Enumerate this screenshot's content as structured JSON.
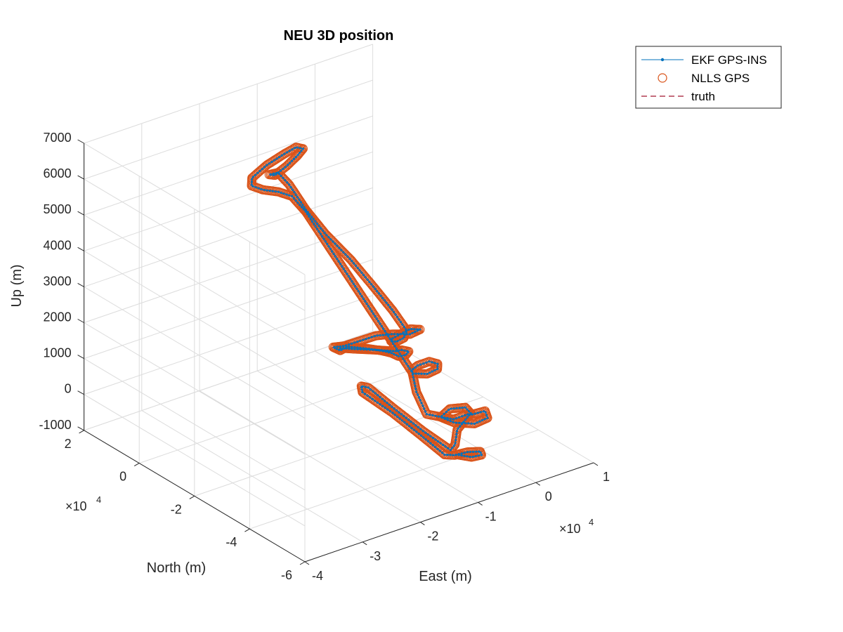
{
  "colors": {
    "ekf": "#0072bd",
    "nlls": "#d95319",
    "truth": "#a2142f",
    "grid": "#dcdcdc",
    "axis": "#262626"
  },
  "chart_data": {
    "type": "scatter",
    "title": "NEU 3D position",
    "xlabel": "East (m)",
    "ylabel": "North (m)",
    "zlabel": "Up (m)",
    "x_exponent": "×10",
    "x_exponent_power": "4",
    "y_exponent": "×10",
    "y_exponent_power": "4",
    "xlim": [
      -4,
      1
    ],
    "ylim": [
      -6,
      2
    ],
    "zlim": [
      -1000,
      7000
    ],
    "x_tick_labels": [
      "-4",
      "-3",
      "-2",
      "-1",
      "0",
      "1"
    ],
    "y_tick_labels": [
      "-6",
      "-4",
      "-2",
      "0",
      "2"
    ],
    "z_tick_labels": [
      "-1000",
      "0",
      "1000",
      "2000",
      "3000",
      "4000",
      "5000",
      "6000",
      "7000"
    ],
    "grid": true,
    "legend_position": "top-right",
    "legend": [
      {
        "name": "EKF GPS-INS",
        "style": "line-dot"
      },
      {
        "name": "NLLS GPS",
        "style": "circle"
      },
      {
        "name": "truth",
        "style": "dashed"
      }
    ],
    "trajectory_units": "x,y in 1e4 m; z in m",
    "trajectory": [
      [
        -1.0,
        -5.3,
        0
      ],
      [
        -0.9,
        -5.55,
        0
      ],
      [
        -0.75,
        -5.6,
        0
      ],
      [
        -0.7,
        -5.45,
        0
      ],
      [
        -0.85,
        -5.3,
        0
      ],
      [
        -1.05,
        -5.25,
        0
      ],
      [
        -1.15,
        -5.1,
        0
      ],
      [
        -1.05,
        -4.0,
        0
      ],
      [
        -0.95,
        -2.8,
        0
      ],
      [
        -0.9,
        -1.6,
        0
      ],
      [
        -0.8,
        -1.35,
        0
      ],
      [
        -0.75,
        -1.5,
        0
      ],
      [
        -0.85,
        -2.6,
        0
      ],
      [
        -0.95,
        -3.9,
        0
      ],
      [
        -1.0,
        -5.0,
        0
      ],
      [
        -0.85,
        -4.85,
        0
      ],
      [
        -0.55,
        -4.3,
        0
      ],
      [
        -0.15,
        -3.9,
        0
      ],
      [
        0.1,
        -3.95,
        0
      ],
      [
        0.0,
        -4.25,
        0
      ],
      [
        -0.25,
        -4.3,
        0
      ],
      [
        -0.45,
        -4.0,
        0
      ],
      [
        -0.5,
        -3.6,
        0
      ],
      [
        -0.25,
        -3.4,
        0
      ],
      [
        -0.05,
        -3.55,
        0
      ],
      [
        -0.1,
        -3.85,
        0
      ],
      [
        -0.4,
        -3.85,
        0
      ],
      [
        -0.6,
        -3.3,
        0
      ],
      [
        -0.3,
        -2.3,
        0
      ],
      [
        0.05,
        -1.4,
        0
      ],
      [
        0.2,
        -1.3,
        0
      ],
      [
        0.4,
        -1.3,
        0
      ],
      [
        0.45,
        -1.5,
        0
      ],
      [
        0.35,
        -1.7,
        0
      ],
      [
        0.15,
        -1.75,
        0
      ],
      [
        0.0,
        -1.55,
        0
      ],
      [
        -0.3,
        -1.4,
        1000
      ],
      [
        -0.6,
        -1.25,
        2000
      ],
      [
        -0.9,
        -1.1,
        3000
      ],
      [
        -1.2,
        -0.95,
        4000
      ],
      [
        -1.5,
        -0.8,
        5000
      ],
      [
        -1.7,
        -0.72,
        5500
      ],
      [
        -1.9,
        -0.65,
        5700
      ],
      [
        -2.1,
        -0.5,
        5800
      ],
      [
        -2.15,
        -0.2,
        5800
      ],
      [
        -2.0,
        0.1,
        5800
      ],
      [
        -1.6,
        0.4,
        5800
      ],
      [
        -1.2,
        0.6,
        5800
      ],
      [
        -0.95,
        0.7,
        5800
      ],
      [
        -0.9,
        0.55,
        5800
      ],
      [
        -1.1,
        0.35,
        5800
      ],
      [
        -1.4,
        0.1,
        5800
      ],
      [
        -1.7,
        -0.1,
        5800
      ],
      [
        -1.75,
        0.0,
        5800
      ],
      [
        -1.55,
        0.1,
        5700
      ],
      [
        -1.45,
        -0.1,
        5400
      ],
      [
        -1.4,
        -0.6,
        4900
      ],
      [
        -1.3,
        -1.1,
        4400
      ],
      [
        -1.1,
        -1.6,
        3800
      ],
      [
        -0.95,
        -2.1,
        3200
      ],
      [
        -0.85,
        -2.6,
        2700
      ],
      [
        -0.8,
        -3.0,
        2300
      ],
      [
        -0.9,
        -3.1,
        2200
      ],
      [
        -1.05,
        -3.15,
        2200
      ],
      [
        -1.1,
        -3.05,
        2200
      ],
      [
        -1.0,
        -2.9,
        2150
      ],
      [
        -0.6,
        -2.7,
        2100
      ],
      [
        -0.5,
        -2.85,
        2100
      ],
      [
        -0.7,
        -2.9,
        2100
      ],
      [
        -0.85,
        -2.6,
        2050
      ],
      [
        -1.0,
        -2.3,
        1950
      ],
      [
        -1.2,
        -2.15,
        1850
      ],
      [
        -1.4,
        -2.0,
        1750
      ],
      [
        -1.55,
        -1.9,
        1750
      ],
      [
        -1.5,
        -2.05,
        1700
      ],
      [
        -1.35,
        -2.0,
        1700
      ],
      [
        -1.25,
        -2.05,
        1650
      ],
      [
        -1.1,
        -2.2,
        1600
      ],
      [
        -0.95,
        -2.4,
        1550
      ],
      [
        -0.85,
        -2.55,
        1500
      ],
      [
        -0.8,
        -2.7,
        1450
      ],
      [
        -0.7,
        -2.75,
        1450
      ],
      [
        -0.6,
        -2.65,
        1450
      ],
      [
        -0.65,
        -2.5,
        1450
      ],
      [
        -0.75,
        -2.45,
        1450
      ],
      [
        -0.95,
        -2.25,
        1500
      ],
      [
        -1.2,
        -2.0,
        1550
      ],
      [
        -1.4,
        -1.8,
        1600
      ]
    ]
  }
}
